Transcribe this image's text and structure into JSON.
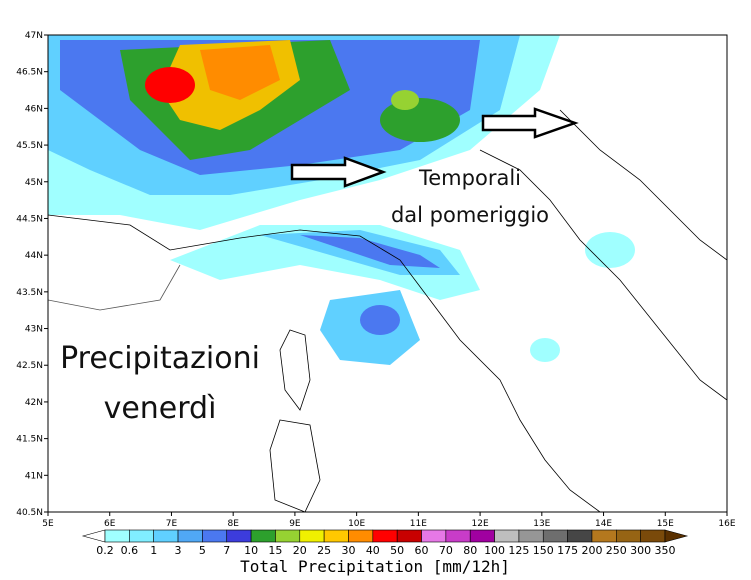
{
  "map": {
    "lat_ticks": [
      "47N",
      "46.5N",
      "46N",
      "45.5N",
      "45N",
      "44.5N",
      "44N",
      "43.5N",
      "43N",
      "42.5N",
      "42N",
      "41.5N",
      "41N",
      "40.5N"
    ],
    "lon_ticks": [
      "5E",
      "6E",
      "7E",
      "8E",
      "9E",
      "10E",
      "11E",
      "12E",
      "13E",
      "14E",
      "15E",
      "16E"
    ],
    "annotations": {
      "arrow_note": [
        "Temporali",
        "dal pomeriggio"
      ],
      "main_note": [
        "Precipitazioni",
        "venerdì"
      ]
    },
    "colorbar": {
      "title": "Total Precipitation [mm/12h]",
      "levels": [
        0.2,
        0.6,
        1,
        3,
        5,
        7,
        10,
        15,
        20,
        25,
        30,
        40,
        50,
        60,
        70,
        80,
        100,
        125,
        150,
        175,
        200,
        250,
        300,
        350
      ],
      "colors": [
        "#ffffff",
        "#a0ffff",
        "#80eeff",
        "#60d0ff",
        "#50a8f5",
        "#4b78f0",
        "#3c3cdc",
        "#2da02d",
        "#96d232",
        "#f0f000",
        "#ffc800",
        "#ff8c00",
        "#ff0000",
        "#c80000",
        "#e678e6",
        "#c83cc8",
        "#a000a0",
        "#bebebe",
        "#969696",
        "#6e6e6e",
        "#464646",
        "#b4781e",
        "#966414",
        "#7a4a0a",
        "#5a3000"
      ]
    }
  }
}
